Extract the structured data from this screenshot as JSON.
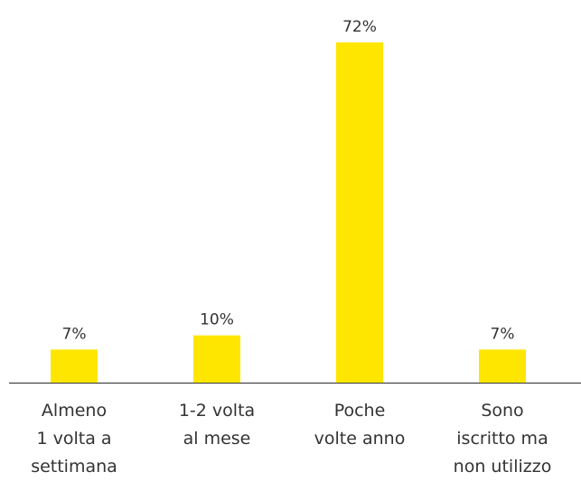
{
  "chart_data": {
    "type": "bar",
    "categories": [
      "Almeno\n1 volta a\nsettimana",
      "1-2 volta\nal mese",
      "Poche\nvolte anno",
      "Sono\niscritto ma\nnon utilizzo"
    ],
    "values": [
      7,
      10,
      72,
      7
    ],
    "value_labels": [
      "7%",
      "10%",
      "72%",
      "7%"
    ],
    "color": "#ffe600"
  }
}
